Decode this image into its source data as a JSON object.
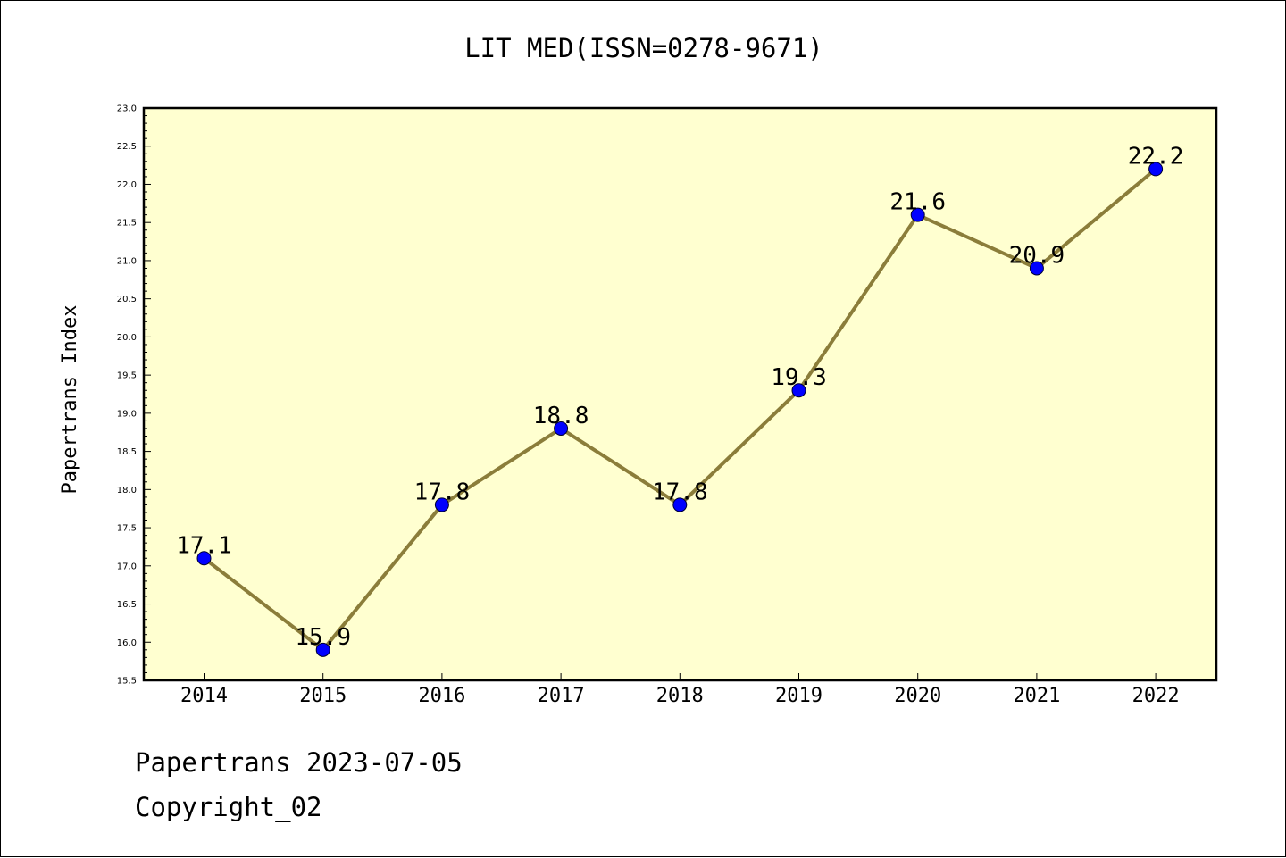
{
  "chart_data": {
    "type": "line",
    "title": "LIT MED(ISSN=0278-9671)",
    "xlabel": "",
    "ylabel": "Papertrans Index",
    "categories": [
      "2014",
      "2015",
      "2016",
      "2017",
      "2018",
      "2019",
      "2020",
      "2021",
      "2022"
    ],
    "values": [
      17.1,
      15.9,
      17.8,
      18.8,
      17.8,
      19.3,
      21.6,
      20.9,
      22.2
    ],
    "data_labels": [
      "17.1",
      "15.9",
      "17.8",
      "18.8",
      "17.8",
      "19.3",
      "21.6",
      "20.9",
      "22.2"
    ],
    "ylim": [
      15.5,
      23.0
    ],
    "yticks": [
      "15.5",
      "16.0",
      "16.5",
      "17.0",
      "17.5",
      "18.0",
      "18.5",
      "19.0",
      "19.5",
      "20.0",
      "20.5",
      "21.0",
      "21.5",
      "22.0",
      "22.5",
      "23.0"
    ],
    "grid": false,
    "colors": {
      "plot_background": "#FFFFD0",
      "line": "#8B7D3A",
      "marker": "#0000FF"
    }
  },
  "footer": {
    "date_line": "Papertrans 2023-07-05",
    "copyright": "Copyright_02"
  }
}
